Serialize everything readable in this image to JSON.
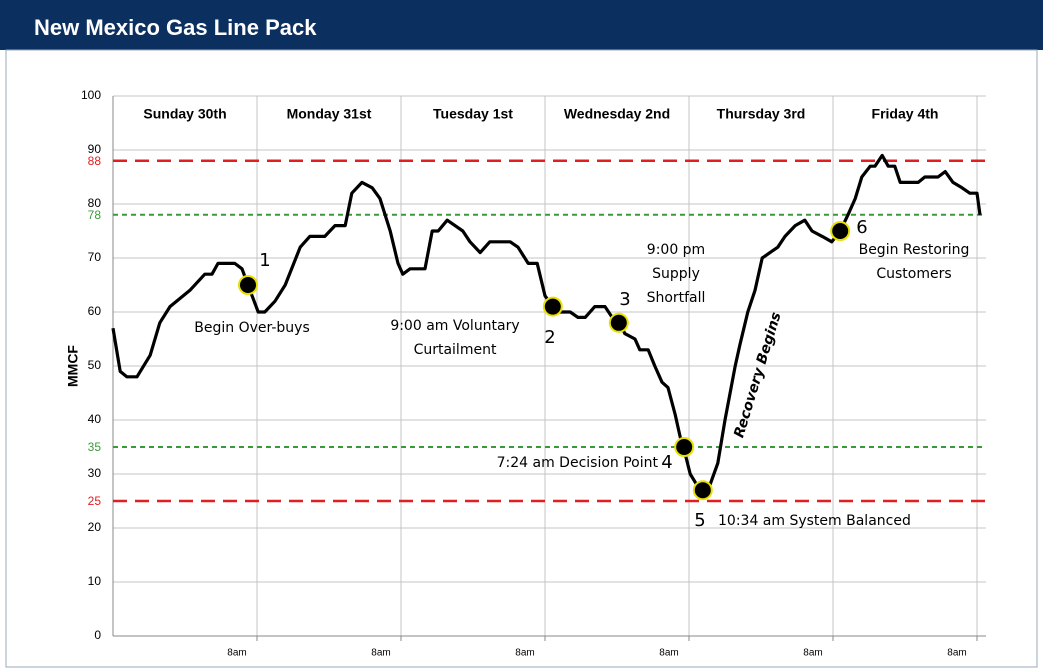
{
  "chart_data": {
    "type": "line",
    "title": "New Mexico Gas Line Pack",
    "y_label": "MMCF",
    "color": "#000000",
    "grid": true,
    "xlim": [
      0,
      145.5
    ],
    "ylim": [
      0,
      100
    ],
    "yticks": [
      0,
      10,
      20,
      30,
      40,
      50,
      60,
      70,
      80,
      90,
      100
    ],
    "xticks": [
      {
        "value": 24,
        "label": "8am"
      },
      {
        "value": 48,
        "label": "8am"
      },
      {
        "value": 72,
        "label": "8am"
      },
      {
        "value": 96,
        "label": "8am"
      },
      {
        "value": 120,
        "label": "8am"
      },
      {
        "value": 144,
        "label": "8am"
      }
    ],
    "day_labels": [
      "Sunday 30th",
      "Monday 31st",
      "Tuesday 1st",
      "Wednesday 2nd",
      "Thursday 3rd",
      "Friday 4th"
    ],
    "reference_lines": [
      {
        "value": 88,
        "color": "#e02020"
      },
      {
        "value": 78,
        "color": "#3a9a3a"
      },
      {
        "value": 35,
        "color": "#3a9a3a"
      },
      {
        "value": 25,
        "color": "#e02020"
      }
    ],
    "x": [
      0,
      1.2,
      2.3,
      4,
      6.2,
      7.8,
      9.5,
      12.8,
      15.3,
      16.5,
      17.5,
      20.3,
      21.5,
      22.5,
      24.2,
      25.3,
      27,
      28.7,
      31.2,
      32.8,
      35.3,
      37,
      38.7,
      39.8,
      41.5,
      43.2,
      44.5,
      46.2,
      47.5,
      48.3,
      49.5,
      52,
      53.2,
      54.2,
      55.7,
      57,
      58.3,
      59.5,
      61.2,
      62.8,
      66.2,
      67.5,
      69.2,
      70.7,
      72,
      73.3,
      74.5,
      76.2,
      77.5,
      78.7,
      80.3,
      82,
      83.2,
      84.5,
      85.3,
      87,
      87.8,
      89.2,
      90.3,
      91.5,
      92.5,
      93.7,
      94.5,
      95.3,
      96.2,
      97.3,
      98.7,
      99.5,
      100.8,
      102,
      103.7,
      104.5,
      105.8,
      107,
      108.2,
      109.5,
      110.8,
      112,
      113.7,
      115.3,
      116.5,
      118.2,
      119.8,
      121.2,
      122.5,
      123.7,
      124.8,
      126.2,
      127,
      128.2,
      129.2,
      130.3,
      131.2,
      134.2,
      135.3,
      137.5,
      138.7,
      140,
      141.5,
      142.8,
      144,
      144.5
    ],
    "values": [
      57,
      49,
      48,
      48,
      52,
      58,
      61,
      64,
      67,
      67,
      69,
      69,
      68,
      65,
      60,
      60,
      62,
      65,
      72,
      74,
      74,
      76,
      76,
      82,
      84,
      83,
      81,
      75,
      69,
      67,
      68,
      68,
      75,
      75,
      77,
      76,
      75,
      73,
      71,
      73,
      73,
      72,
      69,
      69,
      63,
      61,
      60,
      60,
      59,
      59,
      61,
      61,
      59,
      58,
      56,
      55,
      53,
      53,
      50,
      47,
      46,
      41,
      37,
      34,
      30,
      28,
      27,
      28,
      32,
      40,
      50,
      54,
      60,
      64,
      70,
      71,
      72,
      74,
      76,
      77,
      75,
      74,
      73,
      75,
      78,
      81,
      85,
      87,
      87,
      89,
      87,
      87,
      84,
      84,
      85,
      85,
      86,
      84,
      83,
      82,
      82,
      78
    ],
    "events": [
      {
        "number": "1",
        "x": 22.5,
        "y": 65,
        "text": [
          "Begin Over-buys"
        ]
      },
      {
        "number": "2",
        "x": 73.3,
        "y": 61,
        "text": [
          "9:00 am Voluntary",
          "Curtailment"
        ]
      },
      {
        "number": "3",
        "x": 84.3,
        "y": 58,
        "text": [
          "9:00 pm",
          "Supply",
          "Shortfall"
        ]
      },
      {
        "number": "4",
        "x": 95.2,
        "y": 35,
        "text": [
          "7:24 am Decision Point"
        ]
      },
      {
        "number": "5",
        "x": 98.3,
        "y": 27,
        "text": [
          "10:34 am System Balanced"
        ]
      },
      {
        "number": "6",
        "x": 121.2,
        "y": 75,
        "text": [
          "Begin Restoring",
          "Customers"
        ]
      }
    ],
    "annotation": "Recovery Begins"
  }
}
